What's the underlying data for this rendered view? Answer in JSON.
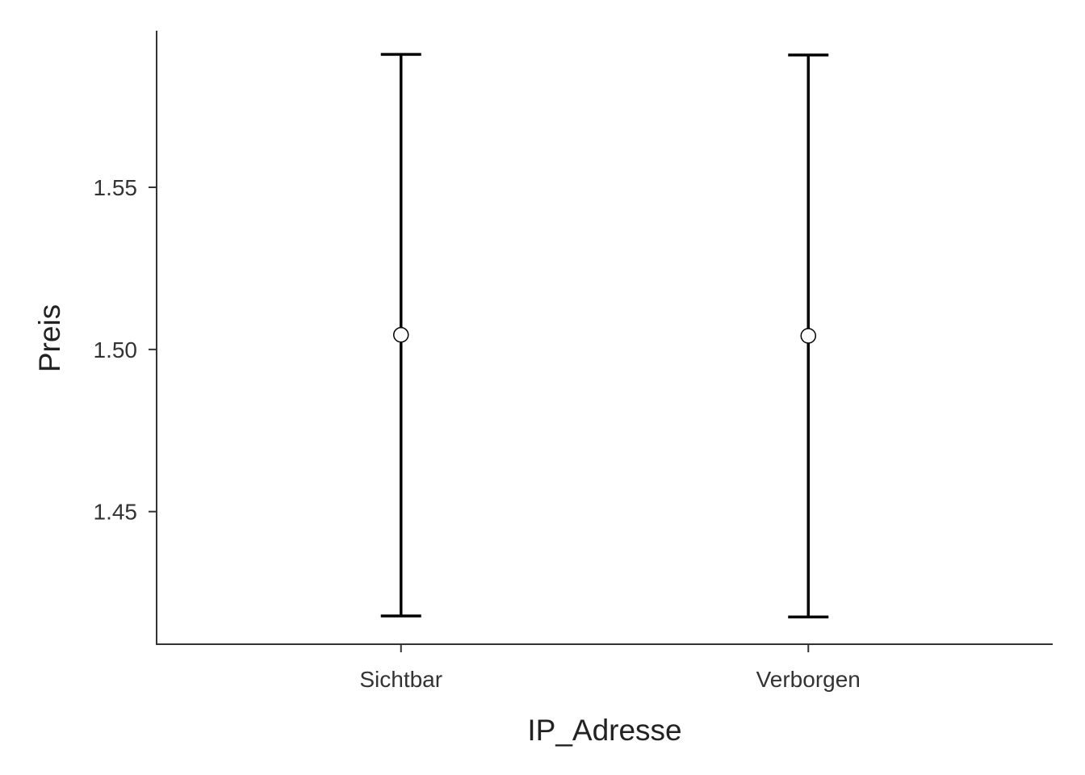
{
  "chart_data": {
    "type": "errorbar",
    "xlabel": "IP_Adresse",
    "ylabel": "Preis",
    "categories": [
      "Sichtbar",
      "Verborgen"
    ],
    "series": [
      {
        "values": [
          1.5045,
          1.5042
        ],
        "lower": [
          1.4178,
          1.4175
        ],
        "upper": [
          1.591,
          1.5908
        ]
      }
    ],
    "ylim": [
      1.4091,
      1.5983
    ],
    "yticks": [
      1.45,
      1.5,
      1.55
    ],
    "ytick_labels": [
      "1.45",
      "1.50",
      "1.55"
    ],
    "grid": false,
    "legend": "none",
    "colors": {
      "errorbar": "#000000",
      "point_fill": "#ffffff",
      "point_stroke": "#000000",
      "axis": "#333333"
    }
  }
}
